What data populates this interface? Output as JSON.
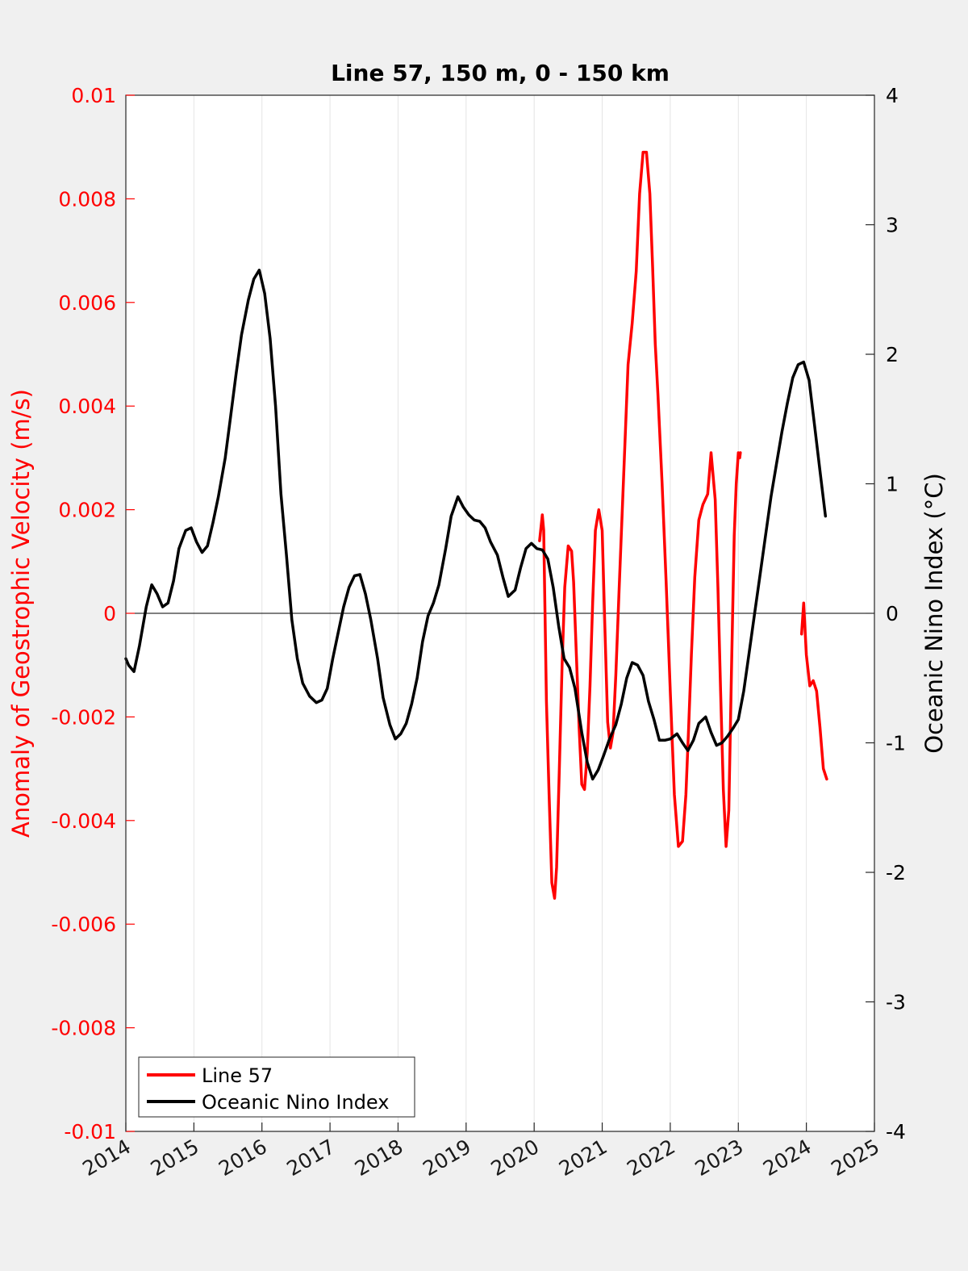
{
  "chart_data": {
    "type": "line",
    "title": "Line 57, 150 m, 0 - 150 km",
    "ylabel_left": "Anomaly of Geostrophic Velocity (m/s)",
    "ylabel_right": "Oceanic Nino Index (°C)",
    "xlabel": "",
    "xlim": [
      2014,
      2025
    ],
    "ylim_left": [
      -0.01,
      0.01
    ],
    "ylim_right": [
      -4,
      4
    ],
    "x_ticks": [
      2014,
      2015,
      2016,
      2017,
      2018,
      2019,
      2020,
      2021,
      2022,
      2023,
      2024,
      2025
    ],
    "x_tick_labels": [
      "2014",
      "2015",
      "2016",
      "2017",
      "2018",
      "2019",
      "2020",
      "2021",
      "2022",
      "2023",
      "2024",
      "2025"
    ],
    "y_left_ticks": [
      0.01,
      0.008,
      0.006,
      0.004,
      0.002,
      0,
      -0.002,
      -0.004,
      -0.006,
      -0.008,
      -0.01
    ],
    "y_left_tick_labels": [
      "0.01",
      "0.008",
      "0.006",
      "0.004",
      "0.002",
      "0",
      "-0.002",
      "-0.004",
      "-0.006",
      "-0.008",
      "-0.01"
    ],
    "y_right_ticks": [
      4,
      3,
      2,
      1,
      0,
      -1,
      -2,
      -3,
      -4
    ],
    "y_right_tick_labels": [
      "4",
      "3",
      "2",
      "1",
      "0",
      "-1",
      "-2",
      "-3",
      "-4"
    ],
    "grid": "vertical",
    "zero_line": true,
    "legend_position": "bottom-left",
    "series": [
      {
        "name": "Line 57",
        "axis": "left",
        "color": "#ff0000",
        "segments": [
          {
            "x": [
              2020.08,
              2020.12,
              2020.14,
              2020.18,
              2020.22,
              2020.26,
              2020.3,
              2020.33,
              2020.37,
              2020.41,
              2020.45,
              2020.5,
              2020.55,
              2020.58,
              2020.62,
              2020.66,
              2020.7,
              2020.74,
              2020.78,
              2020.82,
              2020.86,
              2020.9,
              2020.95,
              2021.0,
              2021.04,
              2021.08,
              2021.12,
              2021.16,
              2021.2,
              2021.25,
              2021.32,
              2021.38,
              2021.44,
              2021.5,
              2021.55,
              2021.6,
              2021.65,
              2021.7,
              2021.74,
              2021.78,
              2021.82,
              2021.88,
              2021.94,
              2022.0,
              2022.06,
              2022.12,
              2022.18,
              2022.23,
              2022.27,
              2022.31,
              2022.36,
              2022.42,
              2022.48,
              2022.55,
              2022.6,
              2022.66,
              2022.7,
              2022.74,
              2022.78,
              2022.82,
              2022.86,
              2022.9,
              2022.94,
              2022.97,
              2023.0,
              2023.02,
              2023.03
            ],
            "y": [
              0.0014,
              0.0019,
              0.0016,
              -0.0017,
              -0.0035,
              -0.0052,
              -0.0055,
              -0.0049,
              -0.003,
              -0.001,
              0.0005,
              0.0013,
              0.0012,
              0.0006,
              -0.0008,
              -0.0022,
              -0.0033,
              -0.0034,
              -0.0027,
              -0.0014,
              0.0002,
              0.0016,
              0.002,
              0.0016,
              -0.0003,
              -0.0021,
              -0.0026,
              -0.0023,
              -0.0012,
              0.0005,
              0.0028,
              0.0048,
              0.0056,
              0.0066,
              0.0081,
              0.0089,
              0.0089,
              0.0081,
              0.0067,
              0.0052,
              0.0042,
              0.0025,
              0.0006,
              -0.0015,
              -0.0035,
              -0.0045,
              -0.0044,
              -0.0035,
              -0.0022,
              -0.0008,
              0.0007,
              0.0018,
              0.0021,
              0.0023,
              0.0031,
              0.0022,
              0.0005,
              -0.0015,
              -0.0034,
              -0.0045,
              -0.0038,
              -0.0011,
              0.0015,
              0.0025,
              0.0031,
              0.003,
              0.0031
            ]
          },
          {
            "x": [
              2023.93,
              2023.96,
              2024.0,
              2024.05,
              2024.1,
              2024.15,
              2024.2,
              2024.25,
              2024.3
            ],
            "y": [
              -0.0004,
              0.0002,
              -0.0008,
              -0.0014,
              -0.0013,
              -0.0015,
              -0.0022,
              -0.003,
              -0.0032
            ]
          }
        ]
      },
      {
        "name": "Oceanic Nino Index",
        "axis": "right",
        "color": "#000000",
        "segments": [
          {
            "x": [
              2014.0,
              2014.04,
              2014.12,
              2014.2,
              2014.3,
              2014.38,
              2014.46,
              2014.54,
              2014.62,
              2014.7,
              2014.78,
              2014.88,
              2014.96,
              2015.04,
              2015.12,
              2015.2,
              2015.28,
              2015.36,
              2015.46,
              2015.54,
              2015.62,
              2015.7,
              2015.8,
              2015.88,
              2015.96,
              2016.04,
              2016.12,
              2016.2,
              2016.28,
              2016.36,
              2016.44,
              2016.52,
              2016.6,
              2016.7,
              2016.8,
              2016.88,
              2016.96,
              2017.04,
              2017.12,
              2017.2,
              2017.28,
              2017.36,
              2017.44,
              2017.52,
              2017.6,
              2017.7,
              2017.78,
              2017.88,
              2017.96,
              2018.04,
              2018.12,
              2018.2,
              2018.28,
              2018.36,
              2018.44,
              2018.52,
              2018.6,
              2018.7,
              2018.78,
              2018.88,
              2018.96,
              2019.04,
              2019.12,
              2019.2,
              2019.28,
              2019.36,
              2019.46,
              2019.54,
              2019.62,
              2019.72,
              2019.8,
              2019.88,
              2019.96,
              2020.04,
              2020.12,
              2020.2,
              2020.28,
              2020.36,
              2020.44,
              2020.52,
              2020.6,
              2020.7,
              2020.78,
              2020.86,
              2020.94,
              2021.02,
              2021.1,
              2021.2,
              2021.28,
              2021.36,
              2021.44,
              2021.52,
              2021.6,
              2021.68,
              2021.76,
              2021.84,
              2021.92,
              2022.0,
              2022.1,
              2022.18,
              2022.26,
              2022.34,
              2022.42,
              2022.52,
              2022.6,
              2022.68,
              2022.76,
              2022.84,
              2022.92,
              2023.0,
              2023.08,
              2023.16,
              2023.24,
              2023.32,
              2023.4,
              2023.48,
              2023.56,
              2023.64,
              2023.72,
              2023.8,
              2023.88,
              2023.96,
              2024.04,
              2024.12,
              2024.2,
              2024.28
            ],
            "y": [
              -0.35,
              -0.4,
              -0.45,
              -0.25,
              0.05,
              0.22,
              0.15,
              0.05,
              0.08,
              0.25,
              0.5,
              0.64,
              0.66,
              0.55,
              0.47,
              0.52,
              0.7,
              0.9,
              1.2,
              1.52,
              1.85,
              2.15,
              2.42,
              2.58,
              2.65,
              2.47,
              2.12,
              1.6,
              0.92,
              0.45,
              -0.05,
              -0.35,
              -0.54,
              -0.64,
              -0.69,
              -0.67,
              -0.58,
              -0.35,
              -0.15,
              0.05,
              0.2,
              0.29,
              0.3,
              0.15,
              -0.05,
              -0.35,
              -0.65,
              -0.86,
              -0.97,
              -0.93,
              -0.85,
              -0.7,
              -0.5,
              -0.22,
              -0.02,
              0.08,
              0.22,
              0.5,
              0.75,
              0.9,
              0.82,
              0.76,
              0.72,
              0.71,
              0.66,
              0.55,
              0.45,
              0.28,
              0.13,
              0.18,
              0.35,
              0.5,
              0.54,
              0.5,
              0.49,
              0.42,
              0.2,
              -0.1,
              -0.35,
              -0.42,
              -0.58,
              -0.92,
              -1.15,
              -1.28,
              -1.21,
              -1.1,
              -0.98,
              -0.86,
              -0.7,
              -0.5,
              -0.38,
              -0.4,
              -0.48,
              -0.68,
              -0.82,
              -0.98,
              -0.98,
              -0.97,
              -0.93,
              -1.0,
              -1.06,
              -0.98,
              -0.85,
              -0.8,
              -0.92,
              -1.02,
              -1.0,
              -0.95,
              -0.89,
              -0.82,
              -0.6,
              -0.3,
              0.0,
              0.3,
              0.6,
              0.9,
              1.15,
              1.4,
              1.62,
              1.82,
              1.92,
              1.94,
              1.8,
              1.45,
              1.1,
              0.75
            ]
          }
        ]
      }
    ]
  }
}
